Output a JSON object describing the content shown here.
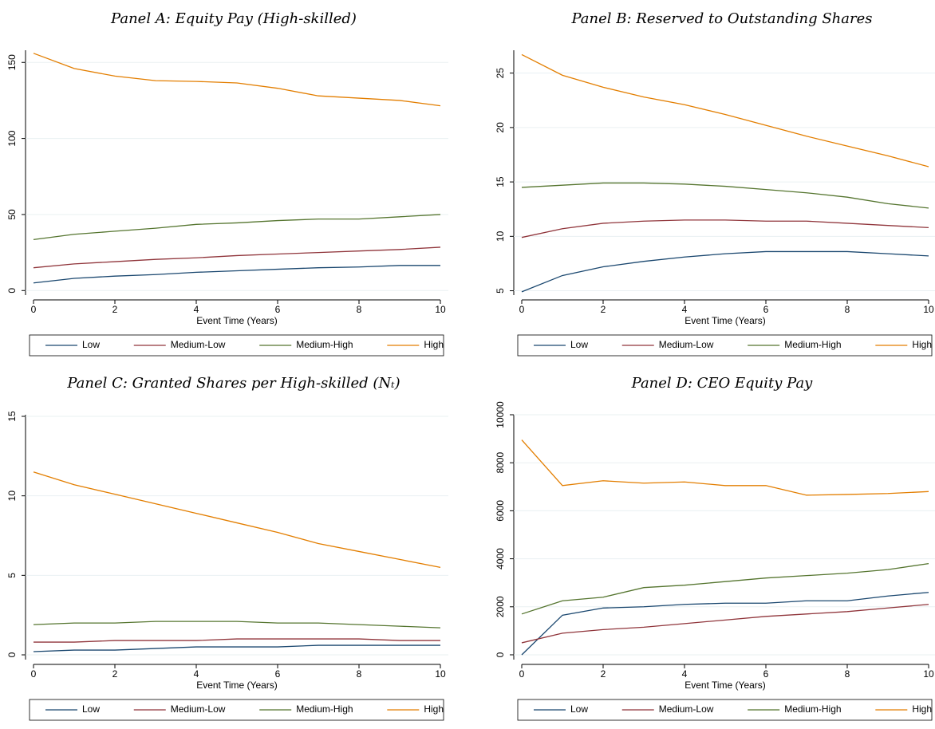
{
  "chart_data": [
    {
      "type": "line",
      "title": "Panel A: Equity Pay (High-skilled)",
      "xlabel": "Event Time (Years)",
      "x": [
        0,
        1,
        2,
        3,
        4,
        5,
        6,
        7,
        8,
        9,
        10
      ],
      "xlim": [
        0,
        10
      ],
      "xticks": [
        0,
        2,
        4,
        6,
        8,
        10
      ],
      "ylim": [
        -3,
        158
      ],
      "yticks": [
        0,
        50,
        100,
        150
      ],
      "grid": true,
      "legend": "bottom",
      "series": [
        {
          "name": "Low",
          "color": "#1a476f",
          "values": [
            5,
            8,
            9.5,
            10.5,
            12,
            13,
            14,
            15,
            15.5,
            16.5,
            16.5
          ]
        },
        {
          "name": "Medium-Low",
          "color": "#90353b",
          "values": [
            15,
            17.5,
            19,
            20.5,
            21.5,
            23,
            24,
            25,
            26,
            27,
            28.5
          ]
        },
        {
          "name": "Medium-High",
          "color": "#55752f",
          "values": [
            33.5,
            37,
            39,
            41,
            43.5,
            44.5,
            46,
            47,
            47,
            48.5,
            50
          ]
        },
        {
          "name": "High",
          "color": "#e37e00",
          "values": [
            156,
            146,
            141,
            138,
            137.5,
            136.5,
            133,
            128,
            126.5,
            125,
            121.5
          ]
        }
      ]
    },
    {
      "type": "line",
      "title": "Panel B: Reserved to Outstanding Shares",
      "xlabel": "Event Time (Years)",
      "x": [
        0,
        1,
        2,
        3,
        4,
        5,
        6,
        7,
        8,
        9,
        10
      ],
      "xlim": [
        0,
        10
      ],
      "xticks": [
        0,
        2,
        4,
        6,
        8,
        10
      ],
      "ylim": [
        4.6,
        27.1
      ],
      "yticks": [
        5,
        10,
        15,
        20,
        25
      ],
      "grid": true,
      "legend": "bottom",
      "series": [
        {
          "name": "Low",
          "color": "#1a476f",
          "values": [
            4.9,
            6.4,
            7.2,
            7.7,
            8.1,
            8.4,
            8.6,
            8.6,
            8.6,
            8.4,
            8.2
          ]
        },
        {
          "name": "Medium-Low",
          "color": "#90353b",
          "values": [
            9.9,
            10.7,
            11.2,
            11.4,
            11.5,
            11.5,
            11.4,
            11.4,
            11.2,
            11.0,
            10.8
          ]
        },
        {
          "name": "Medium-High",
          "color": "#55752f",
          "values": [
            14.5,
            14.7,
            14.9,
            14.9,
            14.8,
            14.6,
            14.3,
            14.0,
            13.6,
            13.0,
            12.6
          ]
        },
        {
          "name": "High",
          "color": "#e37e00",
          "values": [
            26.7,
            24.8,
            23.7,
            22.8,
            22.1,
            21.2,
            20.2,
            19.2,
            18.3,
            17.4,
            16.4
          ]
        }
      ]
    },
    {
      "type": "line",
      "title": "Panel C: Granted Shares per High-skilled (Nₜ)",
      "xlabel": "Event Time (Years)",
      "x": [
        0,
        1,
        2,
        3,
        4,
        5,
        6,
        7,
        8,
        9,
        10
      ],
      "xlim": [
        0,
        10
      ],
      "xticks": [
        0,
        2,
        4,
        6,
        8,
        10
      ],
      "ylim": [
        -0.3,
        15.1
      ],
      "yticks": [
        0,
        5,
        10,
        15
      ],
      "grid": true,
      "legend": "bottom",
      "series": [
        {
          "name": "Low",
          "color": "#1a476f",
          "values": [
            0.2,
            0.3,
            0.3,
            0.4,
            0.5,
            0.5,
            0.5,
            0.6,
            0.6,
            0.6,
            0.6
          ]
        },
        {
          "name": "Medium-Low",
          "color": "#90353b",
          "values": [
            0.8,
            0.8,
            0.9,
            0.9,
            0.9,
            1.0,
            1.0,
            1.0,
            1.0,
            0.9,
            0.9
          ]
        },
        {
          "name": "Medium-High",
          "color": "#55752f",
          "values": [
            1.9,
            2.0,
            2.0,
            2.1,
            2.1,
            2.1,
            2.0,
            2.0,
            1.9,
            1.8,
            1.7
          ]
        },
        {
          "name": "High",
          "color": "#e37e00",
          "values": [
            11.5,
            10.7,
            10.1,
            9.5,
            8.9,
            8.3,
            7.7,
            7.0,
            6.5,
            6.0,
            5.5
          ]
        }
      ]
    },
    {
      "type": "line",
      "title": "Panel D: CEO Equity Pay",
      "xlabel": "Event Time (Years)",
      "x": [
        0,
        1,
        2,
        3,
        4,
        5,
        6,
        7,
        8,
        9,
        10
      ],
      "xlim": [
        0,
        10
      ],
      "xticks": [
        0,
        2,
        4,
        6,
        8,
        10
      ],
      "ylim": [
        -200,
        10000
      ],
      "yticks": [
        0,
        2000,
        4000,
        6000,
        8000,
        10000
      ],
      "grid": true,
      "legend": "bottom",
      "series": [
        {
          "name": "Low",
          "color": "#1a476f",
          "values": [
            0,
            1650,
            1950,
            2000,
            2100,
            2150,
            2150,
            2250,
            2250,
            2450,
            2600
          ]
        },
        {
          "name": "Medium-Low",
          "color": "#90353b",
          "values": [
            500,
            900,
            1050,
            1150,
            1300,
            1450,
            1600,
            1700,
            1800,
            1950,
            2100
          ]
        },
        {
          "name": "Medium-High",
          "color": "#55752f",
          "values": [
            1700,
            2250,
            2400,
            2800,
            2900,
            3050,
            3200,
            3300,
            3400,
            3550,
            3800
          ]
        },
        {
          "name": "High",
          "color": "#e37e00",
          "values": [
            8950,
            7050,
            7250,
            7150,
            7200,
            7050,
            7050,
            6650,
            6680,
            6720,
            6800
          ]
        }
      ]
    }
  ]
}
